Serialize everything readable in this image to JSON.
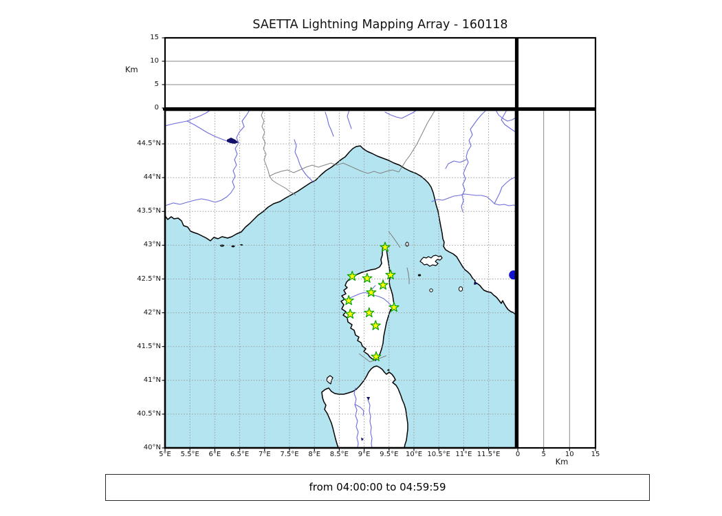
{
  "chart_data": {
    "type": "scatter",
    "title": "SAETTA Lightning Mapping Array - 160118",
    "time_window": "from 04:00:00 to 04:59:59",
    "layout": "geographic map (lon/lat) with altitude strip panels on top and right and an empty corner panel",
    "axes": {
      "lon_range": [
        5.0,
        12.05
      ],
      "lat_range": [
        40.0,
        45.0
      ],
      "alt_range_km": [
        0,
        15
      ],
      "alt_axis_label": "Km",
      "grid_style": "dotted",
      "lon_tick_values": [
        5,
        5.5,
        6,
        6.5,
        7,
        7.5,
        8,
        8.5,
        9,
        9.5,
        10,
        10.5,
        11,
        11.5
      ],
      "lon_tick_labels": [
        "5°E",
        "5.5°E",
        "6°E",
        "6.5°E",
        "7°E",
        "7.5°E",
        "8°E",
        "8.5°E",
        "9°E",
        "9.5°E",
        "10°E",
        "10.5°E",
        "11°E",
        "11.5°E"
      ],
      "lat_tick_values": [
        40,
        40.5,
        41,
        41.5,
        42,
        42.5,
        43,
        43.5,
        44,
        44.5
      ],
      "lat_tick_labels": [
        "40°N",
        "40.5°N",
        "41°N",
        "41.5°N",
        "42°N",
        "42.5°N",
        "43°N",
        "43.5°N",
        "44°N",
        "44.5°N"
      ],
      "lat_grid_values": [
        40.5,
        41,
        41.5,
        42,
        42.5,
        43,
        43.5,
        44,
        44.5
      ],
      "lon_grid_values": [
        5.5,
        6,
        6.5,
        7,
        7.5,
        8,
        8.5,
        9,
        9.5,
        10,
        10.5,
        11,
        11.5
      ],
      "alt_tick_values": [
        0,
        5,
        10,
        15
      ],
      "alt_tick_labels": [
        "0",
        "5",
        "10",
        "15"
      ],
      "alt_grid_values": [
        5,
        10
      ]
    },
    "stations": [
      {
        "lon": 9.42,
        "lat": 42.97
      },
      {
        "lon": 8.76,
        "lat": 42.54
      },
      {
        "lon": 9.06,
        "lat": 42.51
      },
      {
        "lon": 9.53,
        "lat": 42.56
      },
      {
        "lon": 9.38,
        "lat": 42.41
      },
      {
        "lon": 9.14,
        "lat": 42.3
      },
      {
        "lon": 8.69,
        "lat": 42.18
      },
      {
        "lon": 9.6,
        "lat": 42.08
      },
      {
        "lon": 8.72,
        "lat": 41.98
      },
      {
        "lon": 9.1,
        "lat": 42.0
      },
      {
        "lon": 9.23,
        "lat": 41.81
      },
      {
        "lon": 9.24,
        "lat": 41.35
      }
    ],
    "sources": [
      {
        "lon": 12.0,
        "lat": 42.56
      }
    ],
    "station_marker": {
      "shape": "star",
      "fill": "#ffff00",
      "edge": "#00a000"
    },
    "source_marker": {
      "shape": "circle",
      "color": "#1414cc"
    },
    "style": {
      "sea_color": "#b4e4f0",
      "land_color": "#ffffff",
      "coast_color": "#000000",
      "river_color": "#6b6bdb",
      "border_color": "#808080",
      "grid_color": "#9a9a9a"
    }
  }
}
